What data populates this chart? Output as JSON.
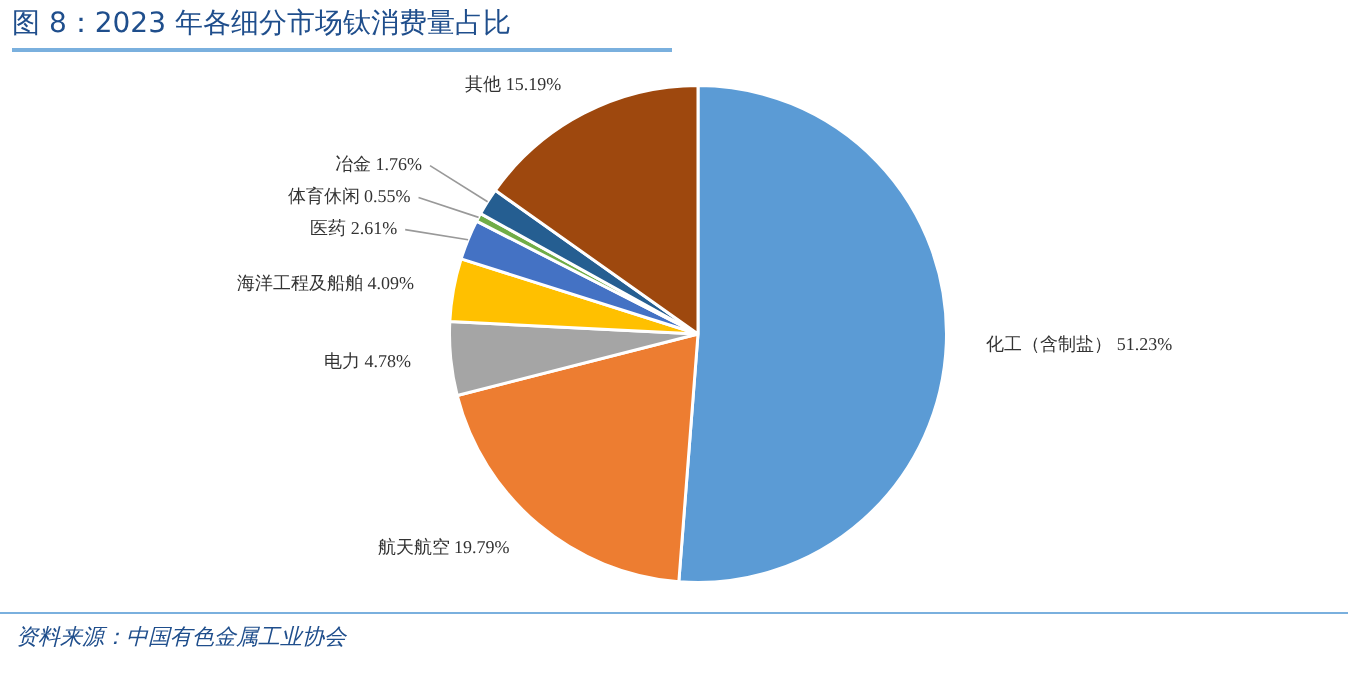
{
  "chart_data": {
    "type": "pie",
    "title": "图 8：2023 年各细分市场钛消费量占比",
    "categories": [
      "化工（含制盐）",
      "航天航空",
      "电力",
      "海洋工程及船舶",
      "医药",
      "体育休闲",
      "冶金",
      "其他"
    ],
    "values": [
      51.23,
      19.79,
      4.78,
      4.09,
      2.61,
      0.55,
      1.76,
      15.19
    ],
    "colors": [
      "#5b9bd5",
      "#ed7d31",
      "#a5a5a5",
      "#ffc000",
      "#4472c4",
      "#70ad47",
      "#255e91",
      "#9e480e"
    ],
    "value_labels": [
      "51.23%",
      "19.79%",
      "4.78%",
      "4.09%",
      "2.61%",
      "0.55%",
      "1.76%",
      "15.19%"
    ],
    "legend": false,
    "annotations": [
      "资料来源：中国有色金属工业协会"
    ]
  }
}
